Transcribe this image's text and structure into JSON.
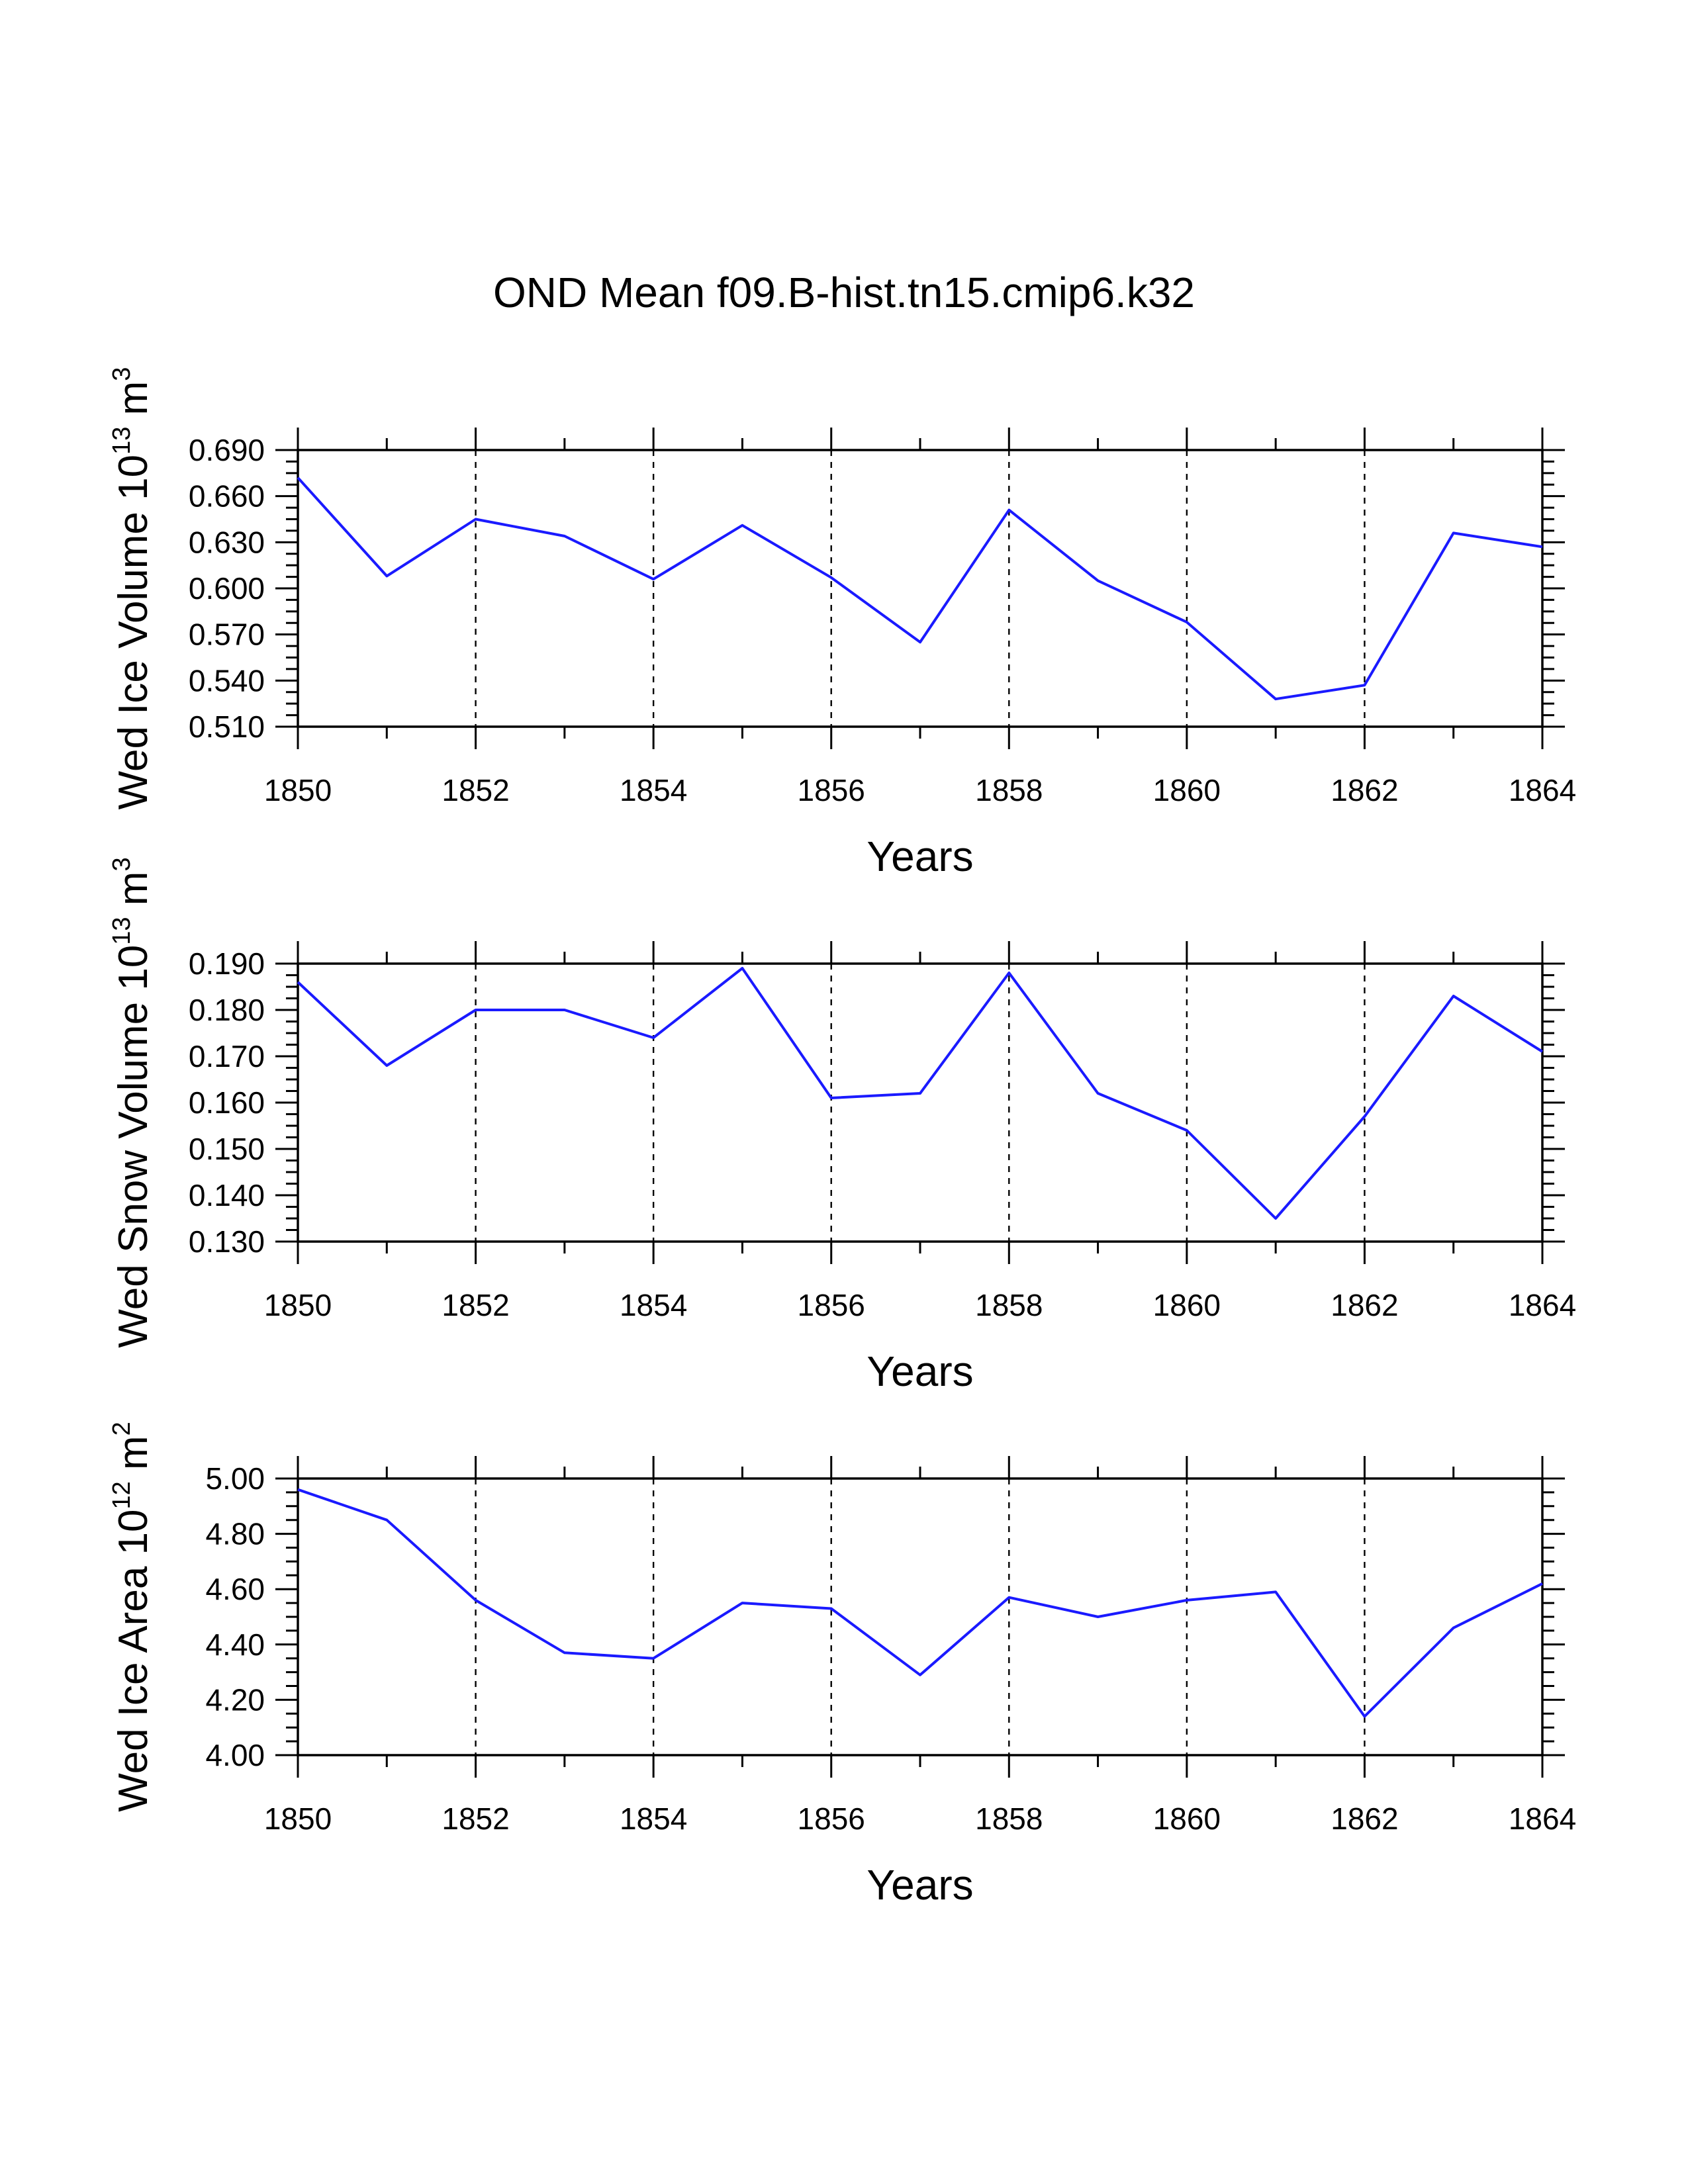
{
  "title": "OND Mean f09.B-hist.tn15.cmip6.k32",
  "colors": {
    "line": "#1a1aff",
    "axis": "#000000",
    "grid": "#000000"
  },
  "chart_data": [
    {
      "type": "line",
      "title": "",
      "xlabel": "Years",
      "ylabel": "Wed Ice Volume",
      "ylabel_exp": "13",
      "ylabel_unit": "3",
      "xlim": [
        1850,
        1864
      ],
      "ylim": [
        0.51,
        0.69
      ],
      "x_ticks": [
        1850,
        1852,
        1854,
        1856,
        1858,
        1860,
        1862,
        1864
      ],
      "x_tick_labels": [
        "1850",
        "1852",
        "1854",
        "1856",
        "1858",
        "1860",
        "1862",
        "1864"
      ],
      "y_ticks": [
        0.51,
        0.54,
        0.57,
        0.6,
        0.63,
        0.66,
        0.69
      ],
      "y_tick_labels": [
        "0.510",
        "0.540",
        "0.570",
        "0.600",
        "0.630",
        "0.660",
        "0.690"
      ],
      "grid": "dashed vertical at major x ticks",
      "x": [
        1850,
        1851,
        1852,
        1853,
        1854,
        1855,
        1856,
        1857,
        1858,
        1859,
        1860,
        1861,
        1862,
        1863,
        1864
      ],
      "series": [
        {
          "name": "Wed Ice Volume",
          "values": [
            0.672,
            0.608,
            0.645,
            0.634,
            0.606,
            0.641,
            0.607,
            0.565,
            0.651,
            0.605,
            0.578,
            0.528,
            0.537,
            0.636,
            0.627
          ]
        }
      ]
    },
    {
      "type": "line",
      "title": "",
      "xlabel": "Years",
      "ylabel": "Wed Snow Volume",
      "ylabel_exp": "13",
      "ylabel_unit": "3",
      "xlim": [
        1850,
        1864
      ],
      "ylim": [
        0.13,
        0.19
      ],
      "x_ticks": [
        1850,
        1852,
        1854,
        1856,
        1858,
        1860,
        1862,
        1864
      ],
      "x_tick_labels": [
        "1850",
        "1852",
        "1854",
        "1856",
        "1858",
        "1860",
        "1862",
        "1864"
      ],
      "y_ticks": [
        0.13,
        0.14,
        0.15,
        0.16,
        0.17,
        0.18,
        0.19
      ],
      "y_tick_labels": [
        "0.130",
        "0.140",
        "0.150",
        "0.160",
        "0.170",
        "0.180",
        "0.190"
      ],
      "grid": "dashed vertical at major x ticks",
      "x": [
        1850,
        1851,
        1852,
        1853,
        1854,
        1855,
        1856,
        1857,
        1858,
        1859,
        1860,
        1861,
        1862,
        1863,
        1864
      ],
      "series": [
        {
          "name": "Wed Snow Volume",
          "values": [
            0.186,
            0.168,
            0.18,
            0.18,
            0.174,
            0.189,
            0.161,
            0.162,
            0.188,
            0.162,
            0.154,
            0.135,
            0.157,
            0.183,
            0.171
          ]
        }
      ]
    },
    {
      "type": "line",
      "title": "",
      "xlabel": "Years",
      "ylabel": "Wed Ice Area",
      "ylabel_exp": "12",
      "ylabel_unit": "2",
      "xlim": [
        1850,
        1864
      ],
      "ylim": [
        4.0,
        5.0
      ],
      "x_ticks": [
        1850,
        1852,
        1854,
        1856,
        1858,
        1860,
        1862,
        1864
      ],
      "x_tick_labels": [
        "1850",
        "1852",
        "1854",
        "1856",
        "1858",
        "1860",
        "1862",
        "1864"
      ],
      "y_ticks": [
        4.0,
        4.2,
        4.4,
        4.6,
        4.8,
        5.0
      ],
      "y_tick_labels": [
        "4.00",
        "4.20",
        "4.40",
        "4.60",
        "4.80",
        "5.00"
      ],
      "grid": "dashed vertical at major x ticks",
      "x": [
        1850,
        1851,
        1852,
        1853,
        1854,
        1855,
        1856,
        1857,
        1858,
        1859,
        1860,
        1861,
        1862,
        1863,
        1864
      ],
      "series": [
        {
          "name": "Wed Ice Area",
          "values": [
            4.96,
            4.85,
            4.56,
            4.37,
            4.35,
            4.55,
            4.53,
            4.29,
            4.57,
            4.5,
            4.56,
            4.59,
            4.14,
            4.46,
            4.62
          ]
        }
      ]
    }
  ]
}
